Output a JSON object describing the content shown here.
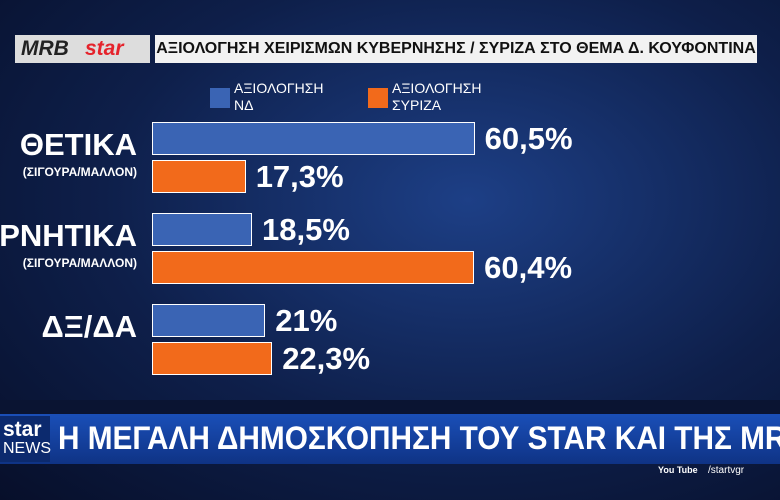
{
  "header": {
    "logo_left": "MRB",
    "logo_right": "star",
    "title": "ΑΞΙΟΛΟΓΗΣΗ ΧΕΙΡΙΣΜΩΝ ΚΥΒΕΡΝΗΣΗΣ / ΣΥΡΙΖΑ ΣΤΟ ΘΕΜΑ Δ. ΚΟΥΦΟΝΤΙΝΑ"
  },
  "chart_data": {
    "type": "hbar",
    "categories": [
      "ΘΕΤΙΚΑ",
      "ΑΡΝΗΤΙΚΑ",
      "ΔΞ/ΔΑ"
    ],
    "category_notes": [
      "(ΣΙΓΟΥΡΑ/ΜΑΛΛΟΝ)",
      "(ΣΙΓΟΥΡΑ/ΜΑΛΛΟΝ)",
      null
    ],
    "series": [
      {
        "name": "ΑΞΙΟΛΟΓΗΣΗ ΝΔ",
        "color": "#3a64b4",
        "values": [
          60.5,
          18.5,
          21
        ],
        "value_labels": [
          "60,5%",
          "18,5%",
          "21%"
        ]
      },
      {
        "name": "ΑΞΙΟΛΟΓΗΣΗ ΣΥΡΙΖΑ",
        "color": "#f26a1b",
        "values": [
          17.3,
          60.4,
          22.3
        ],
        "value_labels": [
          "17,3%",
          "60,4%",
          "22,3%"
        ]
      }
    ]
  },
  "ticker": {
    "logo_top": "star",
    "logo_bottom": "NEWS",
    "text": "Η ΜΕΓΑΛΗ ΔΗΜΟΣΚΟΠΗΣΗ ΤΟΥ STAR ΚΑΙ ΤΗΣ MRB",
    "youtube": "You Tube",
    "handle": "/startvgr"
  }
}
